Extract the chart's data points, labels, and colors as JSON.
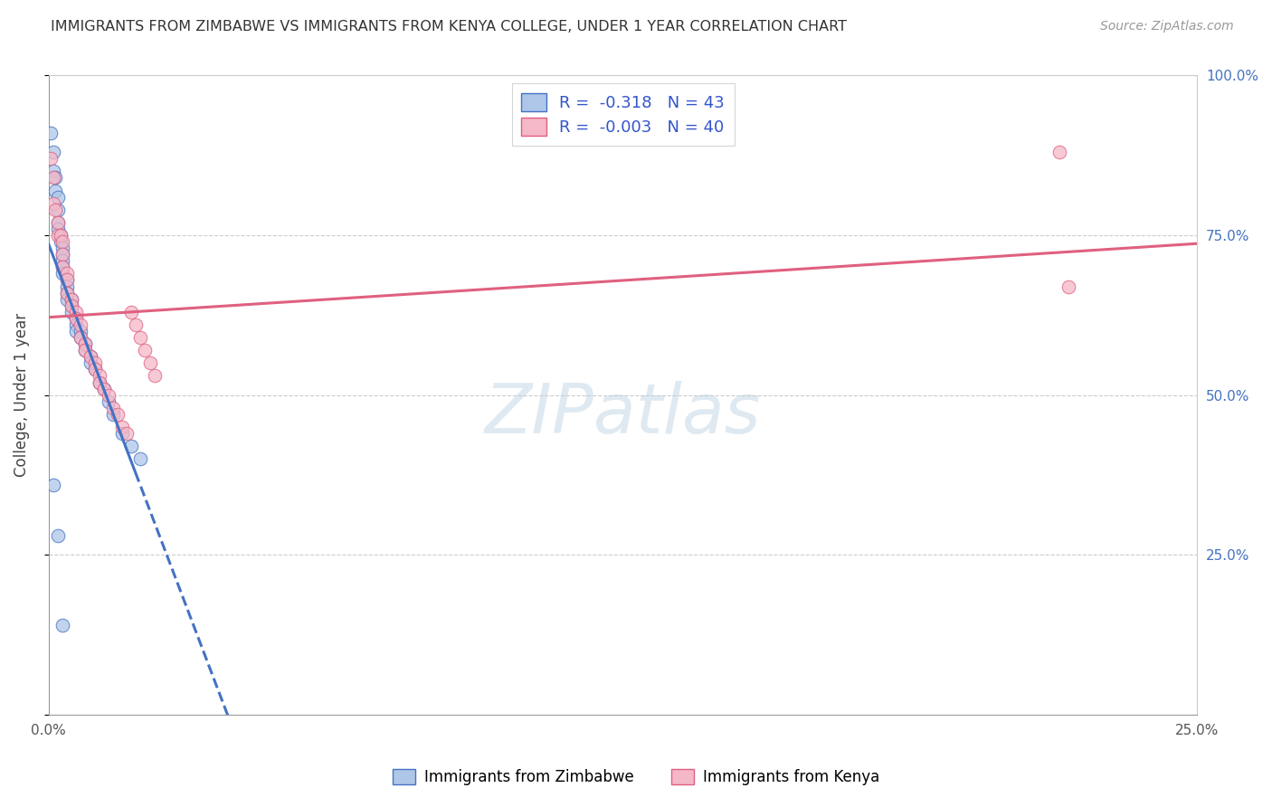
{
  "title": "IMMIGRANTS FROM ZIMBABWE VS IMMIGRANTS FROM KENYA COLLEGE, UNDER 1 YEAR CORRELATION CHART",
  "source": "Source: ZipAtlas.com",
  "ylabel": "College, Under 1 year",
  "x_label_legend1": "Immigrants from Zimbabwe",
  "x_label_legend2": "Immigrants from Kenya",
  "legend_R1_val": "-0.318",
  "legend_N1_val": "43",
  "legend_R2_val": "-0.003",
  "legend_N2_val": "40",
  "color_zim": "#aec6e8",
  "color_ken": "#f4b8c8",
  "color_zim_line": "#4472c4",
  "color_ken_line": "#e06080",
  "xlim": [
    0.0,
    0.25
  ],
  "ylim": [
    0.0,
    1.0
  ],
  "zim_x": [
    0.001,
    0.001,
    0.002,
    0.002,
    0.002,
    0.002,
    0.003,
    0.003,
    0.003,
    0.003,
    0.003,
    0.003,
    0.004,
    0.004,
    0.004,
    0.004,
    0.005,
    0.005,
    0.005,
    0.006,
    0.006,
    0.006,
    0.007,
    0.007,
    0.007,
    0.008,
    0.008,
    0.009,
    0.009,
    0.01,
    0.01,
    0.011,
    0.012,
    0.013,
    0.014,
    0.015,
    0.016,
    0.017,
    0.018,
    0.02,
    0.001,
    0.002,
    0.003
  ],
  "zim_y": [
    0.9,
    0.87,
    0.86,
    0.84,
    0.82,
    0.8,
    0.79,
    0.78,
    0.76,
    0.75,
    0.74,
    0.73,
    0.73,
    0.72,
    0.71,
    0.7,
    0.7,
    0.69,
    0.68,
    0.68,
    0.67,
    0.66,
    0.65,
    0.64,
    0.63,
    0.63,
    0.62,
    0.61,
    0.6,
    0.59,
    0.58,
    0.57,
    0.56,
    0.55,
    0.54,
    0.53,
    0.52,
    0.5,
    0.48,
    0.45,
    0.38,
    0.28,
    0.14
  ],
  "ken_x": [
    0.001,
    0.001,
    0.002,
    0.002,
    0.002,
    0.003,
    0.003,
    0.003,
    0.004,
    0.004,
    0.004,
    0.005,
    0.005,
    0.005,
    0.006,
    0.006,
    0.007,
    0.007,
    0.008,
    0.008,
    0.009,
    0.009,
    0.01,
    0.01,
    0.011,
    0.012,
    0.012,
    0.013,
    0.013,
    0.014,
    0.015,
    0.016,
    0.017,
    0.018,
    0.019,
    0.02,
    0.021,
    0.022,
    0.22,
    0.222
  ],
  "ken_y": [
    0.86,
    0.83,
    0.82,
    0.79,
    0.77,
    0.76,
    0.74,
    0.73,
    0.72,
    0.7,
    0.68,
    0.67,
    0.65,
    0.63,
    0.63,
    0.61,
    0.6,
    0.58,
    0.57,
    0.55,
    0.55,
    0.53,
    0.52,
    0.5,
    0.49,
    0.49,
    0.47,
    0.46,
    0.44,
    0.43,
    0.42,
    0.61,
    0.59,
    0.57,
    0.55,
    0.54,
    0.52,
    0.5,
    0.88,
    0.67
  ]
}
